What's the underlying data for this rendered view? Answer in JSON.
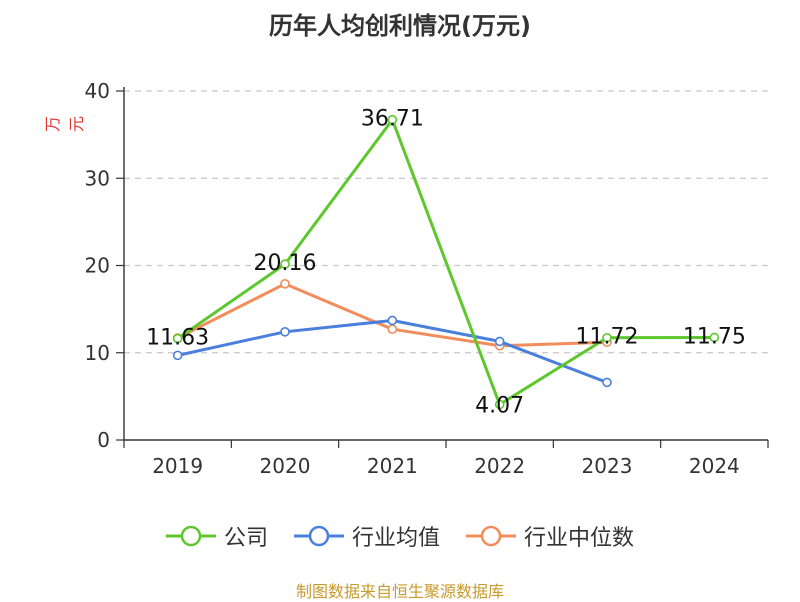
{
  "chart_data": {
    "type": "line",
    "title": "历年人均创利情况(万元)",
    "ylabel": "万元",
    "categories": [
      "2019",
      "2020",
      "2021",
      "2022",
      "2023",
      "2024"
    ],
    "ylim": [
      0,
      40
    ],
    "yticks": [
      0,
      10,
      20,
      30,
      40
    ],
    "grid": true,
    "legend_position": "bottom",
    "series": [
      {
        "name": "公司",
        "color": "#5dc72d",
        "values": [
          11.63,
          20.16,
          36.71,
          4.07,
          11.72,
          11.75
        ],
        "labels": [
          "11.63",
          "20.16",
          "36.71",
          "4.07",
          "11.72",
          "11.75"
        ]
      },
      {
        "name": "行业均值",
        "color": "#4a7fdc",
        "values": [
          9.7,
          12.4,
          13.7,
          11.3,
          6.6,
          null
        ]
      },
      {
        "name": "行业中位数",
        "color": "#f28c5b",
        "values": [
          11.7,
          17.9,
          12.7,
          10.8,
          11.2,
          null
        ]
      }
    ]
  },
  "source": "制图数据来自恒生聚源数据库"
}
